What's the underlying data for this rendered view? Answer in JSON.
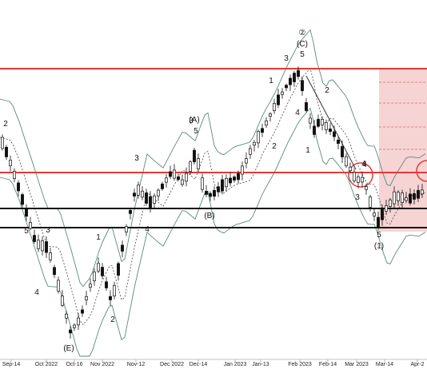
{
  "chart_data": {
    "type": "candlestick",
    "title": "",
    "x_tick_labels": [
      "Sep-14",
      "Oct 2022",
      "Oct-16",
      "Nov 2022",
      "Nov-12",
      "Dec 2022",
      "Dec-14",
      "Jan 2023",
      "Jan-13",
      "Feb 2023",
      "Feb-14",
      "Mar 2023",
      "Mar-14",
      "Apr-2"
    ],
    "overlays": [
      "candlesticks",
      "bollinger-bands",
      "moving-average-dotted"
    ],
    "horizontal_levels": [
      {
        "name": "upper resistance",
        "color": "#e53935"
      },
      {
        "name": "middle resistance",
        "color": "#e53935"
      },
      {
        "name": "support",
        "color": "#111111"
      },
      {
        "name": "lower support",
        "color": "#111111"
      }
    ],
    "forecast_zone": {
      "color": "#f6d4d4",
      "has_dashed_lines": true
    },
    "wave_labels": [
      "2",
      "3",
      "4",
      "5",
      "(E)",
      "3",
      "1",
      "2",
      "3",
      "4",
      "(A)",
      "5",
      "(B)",
      "1",
      "2",
      "3",
      "4",
      "②",
      "(C)",
      "5",
      "1",
      "2",
      "3",
      "4",
      "4",
      "5",
      "(1)"
    ],
    "colors": {
      "up": "#ffffff",
      "down": "#111111",
      "band": "#5a8a7a",
      "resistance": "#e53935",
      "support": "#111111"
    }
  }
}
